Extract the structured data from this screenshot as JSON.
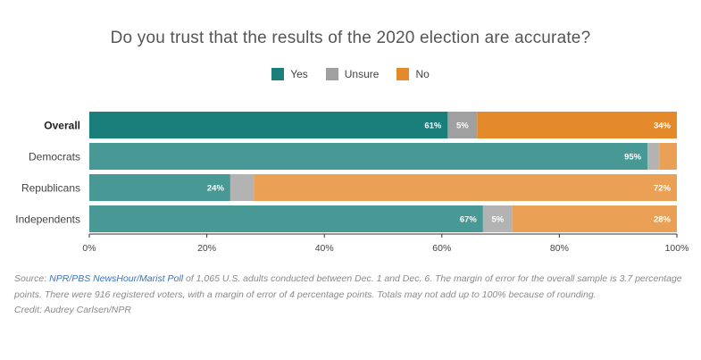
{
  "title": "Do you trust that the results of the 2020 election are accurate?",
  "legend": [
    {
      "label": "Yes",
      "color": "#1a7f7a"
    },
    {
      "label": "Unsure",
      "color": "#a0a0a0"
    },
    {
      "label": "No",
      "color": "#e58a2a"
    }
  ],
  "chart_data": {
    "type": "bar",
    "orientation": "horizontal",
    "stacked": true,
    "categories": [
      "Overall",
      "Democrats",
      "Republicans",
      "Independents"
    ],
    "series": [
      {
        "name": "Yes",
        "color": "#1a7f7a",
        "values": [
          61,
          95,
          24,
          67
        ],
        "labels": [
          "61%",
          "95%",
          "24%",
          "67%"
        ]
      },
      {
        "name": "Unsure",
        "color": "#a0a0a0",
        "values": [
          5,
          2,
          4,
          5
        ],
        "labels": [
          "5%",
          "",
          "",
          "5%"
        ]
      },
      {
        "name": "No",
        "color": "#e58a2a",
        "values": [
          34,
          3,
          72,
          28
        ],
        "labels": [
          "34%",
          "",
          "72%",
          "28%"
        ]
      }
    ],
    "highlight_category": "Overall",
    "xlim": [
      0,
      100
    ],
    "xticks": [
      "0%",
      "20%",
      "40%",
      "60%",
      "80%",
      "100%"
    ],
    "grid": false,
    "legend_position": "top-center"
  },
  "source": {
    "prefix": "Source: ",
    "link_text": "NPR/PBS NewsHour/Marist Poll",
    "rest": " of 1,065 U.S. adults conducted between Dec. 1 and Dec. 6. The margin of error for the overall sample is 3.7 percentage points. There were 916 registered voters, with a margin of error of 4 percentage points. Totals may not add up to 100% because of rounding."
  },
  "credit": "Credit: Audrey Carlsen/NPR"
}
